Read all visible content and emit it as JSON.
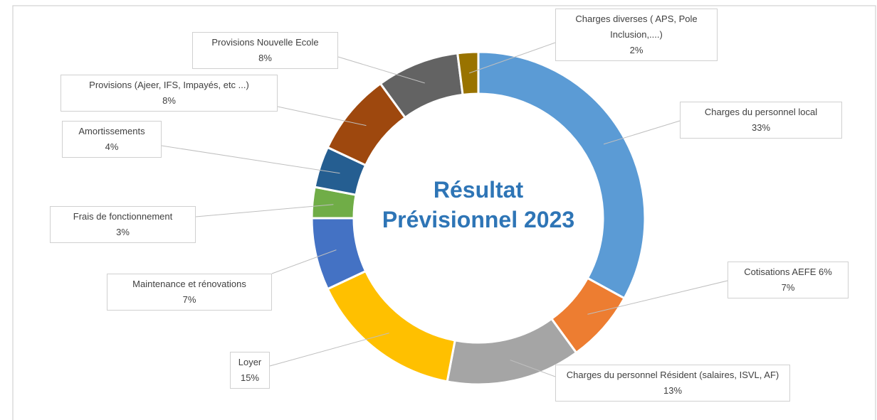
{
  "chart_data": {
    "type": "donut",
    "title": "Résultat Prévisionnel 2023",
    "categories": [
      "Charges du personnel local",
      "Cotisations AEFE 6%",
      "Charges du personnel Résident (salaires, ISVL, AF)",
      "Loyer",
      "Maintenance et rénovations",
      "Frais de fonctionnement",
      "Amortissements",
      "Provisions (Ajeer, IFS, Impayés, etc ...)",
      "Provisions Nouvelle Ecole",
      "Charges diverses ( APS, Pole Inclusion,....)"
    ],
    "values": [
      33,
      7,
      13,
      15,
      7,
      3,
      4,
      8,
      8,
      2
    ],
    "value_labels": [
      "33%",
      "7%",
      "13%",
      "15%",
      "7%",
      "3%",
      "4%",
      "8%",
      "8%",
      "2%"
    ],
    "colors": [
      "#5b9bd5",
      "#ed7d31",
      "#a5a5a5",
      "#ffc000",
      "#4472c4",
      "#70ad47",
      "#255e91",
      "#9e480e",
      "#636363",
      "#997300"
    ]
  }
}
